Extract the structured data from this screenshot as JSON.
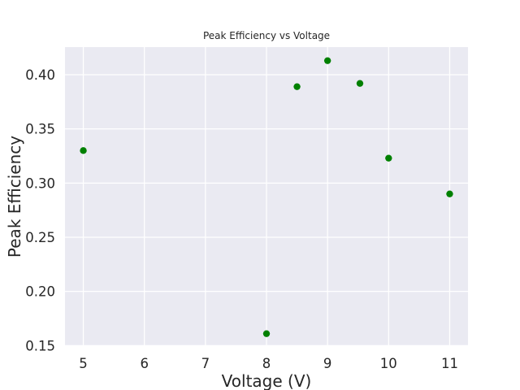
{
  "chart_data": {
    "type": "scatter",
    "title": "Peak Efficiency vs Voltage",
    "xlabel": "Voltage (V)",
    "ylabel": "Peak Efficiency",
    "xlim": [
      4.7,
      11.3
    ],
    "ylim": [
      0.1495,
      0.4255
    ],
    "x_ticks": [
      5,
      6,
      7,
      8,
      9,
      10,
      11
    ],
    "y_ticks": [
      0.15,
      0.2,
      0.25,
      0.3,
      0.35,
      0.4
    ],
    "y_tick_labels": [
      "0.15",
      "0.20",
      "0.25",
      "0.30",
      "0.35",
      "0.40"
    ],
    "grid": true,
    "background_color": "#eaeaf2",
    "grid_color": "#ffffff",
    "marker_color": "#008000",
    "series": [
      {
        "x": [
          5.0,
          8.0,
          8.5,
          9.0,
          9.53,
          10.0,
          11.0
        ],
        "y": [
          0.33,
          0.161,
          0.389,
          0.413,
          0.392,
          0.323,
          0.29
        ]
      }
    ]
  }
}
